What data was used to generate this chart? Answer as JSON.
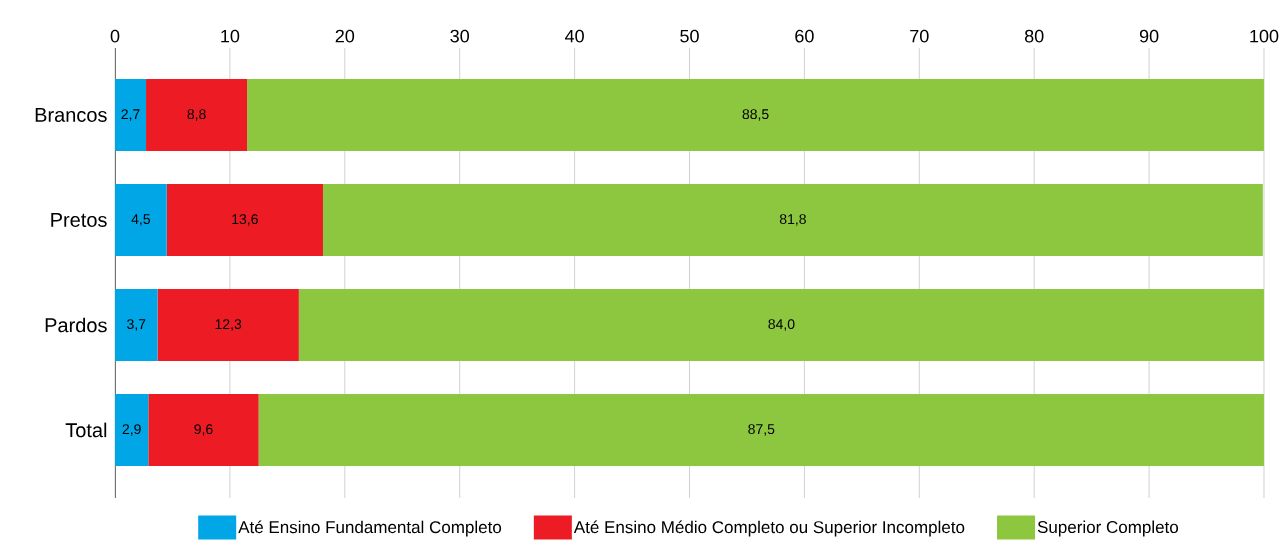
{
  "chart_data": {
    "type": "bar",
    "orientation": "horizontal",
    "stacked": true,
    "categories": [
      "Brancos",
      "Pretos",
      "Pardos",
      "Total"
    ],
    "series": [
      {
        "name": "Até Ensino Fundamental Completo",
        "color": "#00a6e6",
        "values": [
          2.7,
          4.5,
          3.7,
          2.9
        ],
        "value_labels": [
          "2,7",
          "4,5",
          "3,7",
          "2,9"
        ]
      },
      {
        "name": "Até Ensino Médio Completo ou Superior Incompleto",
        "color": "#ed1c24",
        "values": [
          8.8,
          13.6,
          12.3,
          9.6
        ],
        "value_labels": [
          "8,8",
          "13,6",
          "12,3",
          "9,6"
        ]
      },
      {
        "name": "Superior Completo",
        "color": "#8dc63f",
        "values": [
          88.5,
          81.8,
          84.0,
          87.5
        ],
        "value_labels": [
          "88,5",
          "81,8",
          "84,0",
          "87,5"
        ]
      }
    ],
    "xlim": [
      0,
      100
    ],
    "xticks": [
      0,
      10,
      20,
      30,
      40,
      50,
      60,
      70,
      80,
      90,
      100
    ],
    "grid": "x",
    "legend": "bottom"
  }
}
